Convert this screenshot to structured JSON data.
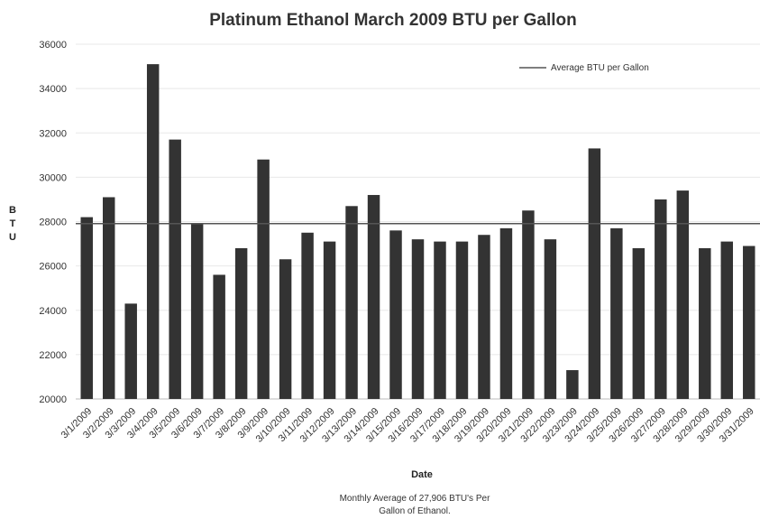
{
  "chart_data": {
    "type": "bar",
    "title": "Platinum Ethanol March 2009 BTU per Gallon",
    "xlabel": "Date",
    "ylabel": "B\nT\nU",
    "ylim": [
      20000,
      36000
    ],
    "yticks": [
      20000,
      22000,
      24000,
      26000,
      28000,
      30000,
      32000,
      34000,
      36000
    ],
    "grid": true,
    "legend_position": "top-right",
    "categories": [
      "3/1/2009",
      "3/2/2009",
      "3/3/2009",
      "3/4/2009",
      "3/5/2009",
      "3/6/2009",
      "3/7/2009",
      "3/8/2009",
      "3/9/2009",
      "3/10/2009",
      "3/11/2009",
      "3/12/2009",
      "3/13/2009",
      "3/14/2009",
      "3/15/2009",
      "3/16/2009",
      "3/17/2009",
      "3/18/2009",
      "3/19/2009",
      "3/20/2009",
      "3/21/2009",
      "3/22/2009",
      "3/23/2009",
      "3/24/2009",
      "3/25/2009",
      "3/26/2009",
      "3/27/2009",
      "3/28/2009",
      "3/29/2009",
      "3/30/2009",
      "3/31/2009"
    ],
    "values": [
      28200,
      29100,
      24300,
      35100,
      31700,
      27900,
      25600,
      26800,
      30800,
      26300,
      27500,
      27100,
      28700,
      29200,
      27600,
      27200,
      27100,
      27100,
      27400,
      27700,
      28500,
      27200,
      21300,
      31300,
      27700,
      26800,
      29000,
      29400,
      26800,
      27100,
      26900
    ],
    "average_line": {
      "name": "Average BTU per Gallon",
      "value": 27906
    },
    "bar_color": "#333333",
    "line_color": "#555555"
  },
  "note": {
    "line1": "Monthly Average of  27,906 BTU's Per",
    "line2": "Gallon of Ethanol."
  }
}
